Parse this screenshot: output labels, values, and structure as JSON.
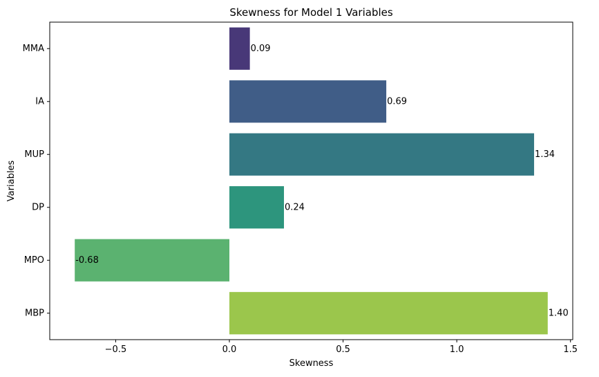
{
  "chart_data": {
    "type": "bar",
    "orientation": "horizontal",
    "title": "Skewness for Model 1 Variables",
    "xlabel": "Skewness",
    "ylabel": "Variables",
    "categories": [
      "MMA",
      "IA",
      "MUP",
      "DP",
      "MPO",
      "MBP"
    ],
    "values": [
      0.09,
      0.69,
      1.34,
      0.24,
      -0.68,
      1.4
    ],
    "data_labels": [
      "0.09",
      "0.69",
      "1.34",
      "0.24",
      "-0.68",
      "1.40"
    ],
    "colors": [
      "#483878",
      "#405d87",
      "#347883",
      "#2d957d",
      "#5bb270",
      "#9bc64c"
    ],
    "xlim": [
      -0.79,
      1.51
    ],
    "xticks": [
      -0.5,
      0.0,
      0.5,
      1.0,
      1.5
    ],
    "xtick_labels": [
      "−0.5",
      "0.0",
      "0.5",
      "1.0",
      "1.5"
    ],
    "grid": false,
    "legend": "none"
  }
}
